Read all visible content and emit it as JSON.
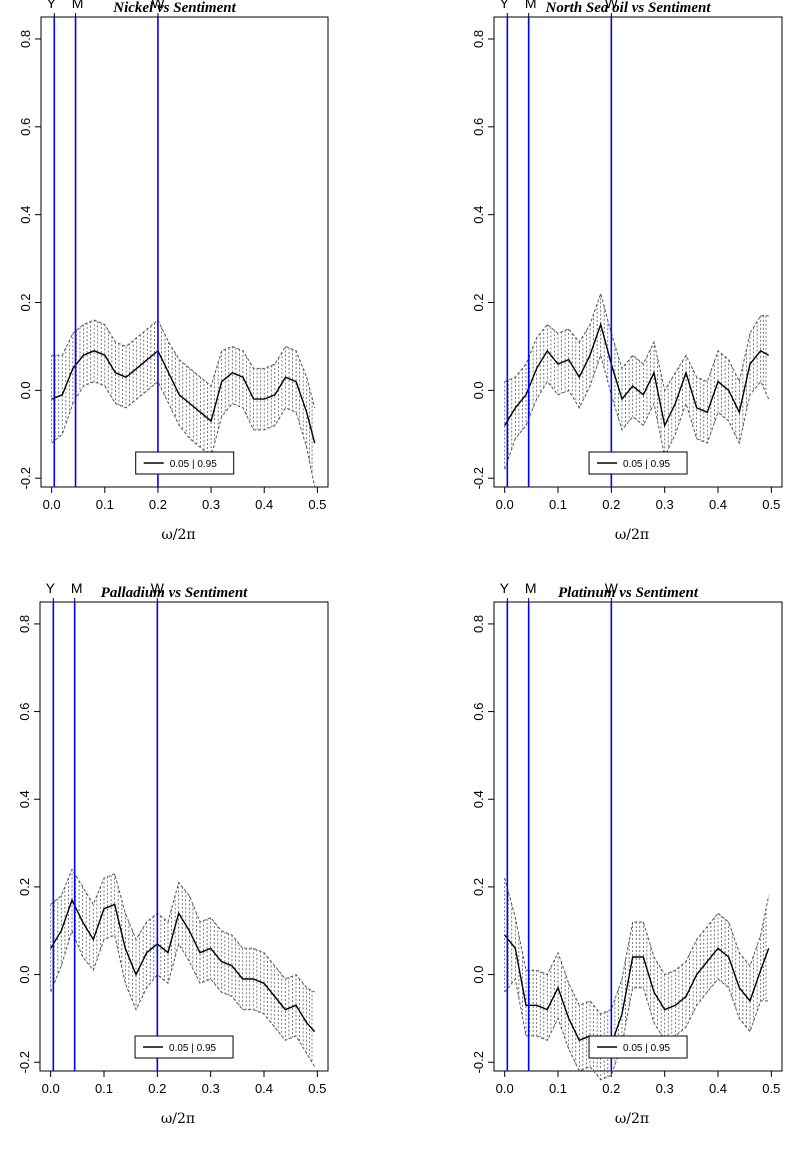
{
  "figure": {
    "colors": {
      "marker_line": "#0000ff",
      "estimate": "#000000",
      "band": "#555555",
      "frame": "#000000"
    }
  },
  "chart_data": [
    {
      "type": "line",
      "title": "Nickel vs Sentiment",
      "xlabel": "ω/2π",
      "ylabel": "",
      "xlim": [
        0.0,
        0.5
      ],
      "ylim": [
        -0.22,
        0.85
      ],
      "xticks": [
        "0.0",
        "0.1",
        "0.2",
        "0.3",
        "0.4",
        "0.5"
      ],
      "yticks": [
        "-0.2",
        "0.0",
        "0.2",
        "0.4",
        "0.6",
        "0.8"
      ],
      "markers": [
        {
          "label": "Y",
          "x": 0.005
        },
        {
          "label": "M",
          "x": 0.045
        },
        {
          "label": "W",
          "x": 0.2
        }
      ],
      "legend": {
        "text": "0.05 | 0.95",
        "position": "bottom-center"
      },
      "x": [
        0.0,
        0.02,
        0.04,
        0.06,
        0.08,
        0.1,
        0.12,
        0.14,
        0.16,
        0.18,
        0.2,
        0.22,
        0.24,
        0.26,
        0.28,
        0.3,
        0.32,
        0.34,
        0.36,
        0.38,
        0.4,
        0.42,
        0.44,
        0.46,
        0.48,
        0.495
      ],
      "estimate": [
        -0.02,
        -0.01,
        0.05,
        0.08,
        0.09,
        0.08,
        0.04,
        0.03,
        0.05,
        0.07,
        0.09,
        0.04,
        -0.01,
        -0.03,
        -0.05,
        -0.07,
        0.02,
        0.04,
        0.03,
        -0.02,
        -0.02,
        -0.01,
        0.03,
        0.02,
        -0.05,
        -0.12
      ],
      "upper": [
        0.08,
        0.08,
        0.13,
        0.15,
        0.16,
        0.15,
        0.11,
        0.1,
        0.12,
        0.14,
        0.16,
        0.11,
        0.07,
        0.05,
        0.03,
        0.01,
        0.09,
        0.1,
        0.09,
        0.05,
        0.05,
        0.06,
        0.1,
        0.09,
        0.03,
        -0.04
      ],
      "lower": [
        -0.12,
        -0.1,
        -0.03,
        0.01,
        0.02,
        0.01,
        -0.03,
        -0.04,
        -0.02,
        0.0,
        0.02,
        -0.03,
        -0.08,
        -0.11,
        -0.13,
        -0.15,
        -0.06,
        -0.03,
        -0.04,
        -0.09,
        -0.09,
        -0.08,
        -0.04,
        -0.05,
        -0.13,
        -0.22
      ]
    },
    {
      "type": "line",
      "title": "North Sea oil vs Sentiment",
      "xlabel": "ω/2π",
      "ylabel": "",
      "xlim": [
        0.0,
        0.5
      ],
      "ylim": [
        -0.22,
        0.85
      ],
      "xticks": [
        "0.0",
        "0.1",
        "0.2",
        "0.3",
        "0.4",
        "0.5"
      ],
      "yticks": [
        "-0.2",
        "0.0",
        "0.2",
        "0.4",
        "0.6",
        "0.8"
      ],
      "markers": [
        {
          "label": "Y",
          "x": 0.005
        },
        {
          "label": "M",
          "x": 0.045
        },
        {
          "label": "W",
          "x": 0.2
        }
      ],
      "legend": {
        "text": "0.05 | 0.95",
        "position": "bottom-center"
      },
      "x": [
        0.0,
        0.02,
        0.04,
        0.06,
        0.08,
        0.1,
        0.12,
        0.14,
        0.16,
        0.18,
        0.2,
        0.22,
        0.24,
        0.26,
        0.28,
        0.3,
        0.32,
        0.34,
        0.36,
        0.38,
        0.4,
        0.42,
        0.44,
        0.46,
        0.48,
        0.495
      ],
      "estimate": [
        -0.08,
        -0.04,
        -0.01,
        0.05,
        0.09,
        0.06,
        0.07,
        0.03,
        0.08,
        0.15,
        0.06,
        -0.02,
        0.01,
        -0.01,
        0.04,
        -0.08,
        -0.03,
        0.04,
        -0.04,
        -0.05,
        0.02,
        0.0,
        -0.05,
        0.06,
        0.09,
        0.08
      ],
      "upper": [
        0.02,
        0.03,
        0.06,
        0.12,
        0.15,
        0.13,
        0.14,
        0.11,
        0.15,
        0.22,
        0.13,
        0.05,
        0.08,
        0.06,
        0.11,
        0.0,
        0.04,
        0.08,
        0.03,
        0.02,
        0.09,
        0.07,
        0.02,
        0.13,
        0.17,
        0.17
      ],
      "lower": [
        -0.18,
        -0.11,
        -0.08,
        -0.02,
        0.02,
        -0.01,
        0.0,
        -0.04,
        0.01,
        0.08,
        -0.01,
        -0.09,
        -0.06,
        -0.08,
        -0.03,
        -0.15,
        -0.1,
        -0.03,
        -0.11,
        -0.12,
        -0.05,
        -0.07,
        -0.12,
        -0.01,
        0.02,
        -0.02
      ]
    },
    {
      "type": "line",
      "title": "Palladium vs Sentiment",
      "xlabel": "ω/2π",
      "ylabel": "",
      "xlim": [
        0.0,
        0.5
      ],
      "ylim": [
        -0.22,
        0.85
      ],
      "xticks": [
        "0.0",
        "0.1",
        "0.2",
        "0.3",
        "0.4",
        "0.5"
      ],
      "yticks": [
        "-0.2",
        "0.0",
        "0.2",
        "0.4",
        "0.6",
        "0.8"
      ],
      "markers": [
        {
          "label": "Y",
          "x": 0.005
        },
        {
          "label": "M",
          "x": 0.045
        },
        {
          "label": "W",
          "x": 0.2
        }
      ],
      "legend": {
        "text": "0.05 | 0.95",
        "position": "bottom-center"
      },
      "x": [
        0.0,
        0.02,
        0.04,
        0.06,
        0.08,
        0.1,
        0.12,
        0.14,
        0.16,
        0.18,
        0.2,
        0.22,
        0.24,
        0.26,
        0.28,
        0.3,
        0.32,
        0.34,
        0.36,
        0.38,
        0.4,
        0.42,
        0.44,
        0.46,
        0.48,
        0.495
      ],
      "estimate": [
        0.06,
        0.1,
        0.17,
        0.12,
        0.08,
        0.15,
        0.16,
        0.06,
        0.0,
        0.05,
        0.07,
        0.05,
        0.14,
        0.1,
        0.05,
        0.06,
        0.03,
        0.02,
        -0.01,
        -0.01,
        -0.02,
        -0.05,
        -0.08,
        -0.07,
        -0.11,
        -0.13
      ],
      "upper": [
        0.16,
        0.18,
        0.24,
        0.2,
        0.16,
        0.22,
        0.23,
        0.14,
        0.08,
        0.12,
        0.14,
        0.12,
        0.21,
        0.18,
        0.12,
        0.13,
        0.1,
        0.09,
        0.06,
        0.06,
        0.05,
        0.02,
        -0.01,
        0.0,
        -0.03,
        -0.04
      ],
      "lower": [
        -0.04,
        0.02,
        0.1,
        0.04,
        0.01,
        0.08,
        0.09,
        -0.02,
        -0.08,
        -0.03,
        0.0,
        -0.02,
        0.07,
        0.03,
        -0.02,
        -0.01,
        -0.04,
        -0.05,
        -0.08,
        -0.08,
        -0.09,
        -0.12,
        -0.15,
        -0.14,
        -0.18,
        -0.21
      ]
    },
    {
      "type": "line",
      "title": "Platinum vs Sentiment",
      "xlabel": "ω/2π",
      "ylabel": "",
      "xlim": [
        0.0,
        0.5
      ],
      "ylim": [
        -0.22,
        0.85
      ],
      "xticks": [
        "0.0",
        "0.1",
        "0.2",
        "0.3",
        "0.4",
        "0.5"
      ],
      "yticks": [
        "-0.2",
        "0.0",
        "0.2",
        "0.4",
        "0.6",
        "0.8"
      ],
      "markers": [
        {
          "label": "Y",
          "x": 0.005
        },
        {
          "label": "M",
          "x": 0.045
        },
        {
          "label": "W",
          "x": 0.2
        }
      ],
      "legend": {
        "text": "0.05 | 0.95",
        "position": "bottom-center"
      },
      "x": [
        0.0,
        0.02,
        0.04,
        0.06,
        0.08,
        0.1,
        0.12,
        0.14,
        0.16,
        0.18,
        0.2,
        0.22,
        0.24,
        0.26,
        0.28,
        0.3,
        0.32,
        0.34,
        0.36,
        0.38,
        0.4,
        0.42,
        0.44,
        0.46,
        0.48,
        0.495
      ],
      "estimate": [
        0.09,
        0.06,
        -0.07,
        -0.07,
        -0.08,
        -0.03,
        -0.1,
        -0.15,
        -0.14,
        -0.17,
        -0.16,
        -0.09,
        0.04,
        0.04,
        -0.04,
        -0.08,
        -0.07,
        -0.05,
        0.0,
        0.03,
        0.06,
        0.04,
        -0.03,
        -0.06,
        0.01,
        0.06
      ],
      "upper": [
        0.22,
        0.13,
        0.01,
        0.01,
        0.0,
        0.05,
        -0.02,
        -0.07,
        -0.06,
        -0.09,
        -0.08,
        -0.01,
        0.12,
        0.12,
        0.04,
        0.0,
        0.01,
        0.03,
        0.08,
        0.11,
        0.14,
        0.12,
        0.05,
        0.02,
        0.09,
        0.18
      ],
      "lower": [
        -0.04,
        -0.01,
        -0.14,
        -0.14,
        -0.15,
        -0.1,
        -0.17,
        -0.22,
        -0.21,
        -0.24,
        -0.23,
        -0.16,
        -0.03,
        -0.03,
        -0.11,
        -0.15,
        -0.14,
        -0.12,
        -0.07,
        -0.04,
        -0.01,
        -0.03,
        -0.1,
        -0.13,
        -0.06,
        -0.06
      ]
    }
  ]
}
